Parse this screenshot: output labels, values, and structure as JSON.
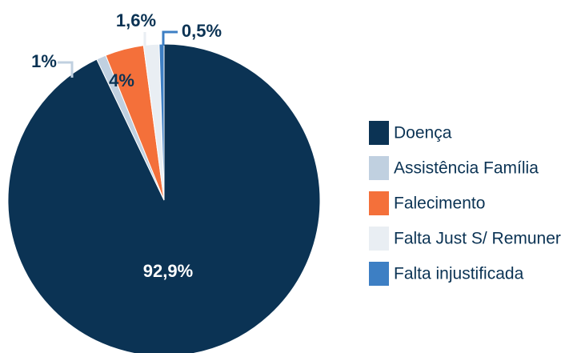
{
  "chart_data": {
    "type": "pie",
    "categories": [
      "Doença",
      "Assistência Família",
      "Falecimento",
      "Falta Just S/ Remuner",
      "Falta injustificada"
    ],
    "values": [
      92.9,
      1,
      4,
      1.6,
      0.5
    ],
    "value_labels": [
      "92,9%",
      "1%",
      "4%",
      "1,6%",
      "0,5%"
    ],
    "colors": [
      "#0b3354",
      "#c0d0e0",
      "#f4703a",
      "#e9eef3",
      "#3d7fc4"
    ],
    "legend": "right"
  }
}
